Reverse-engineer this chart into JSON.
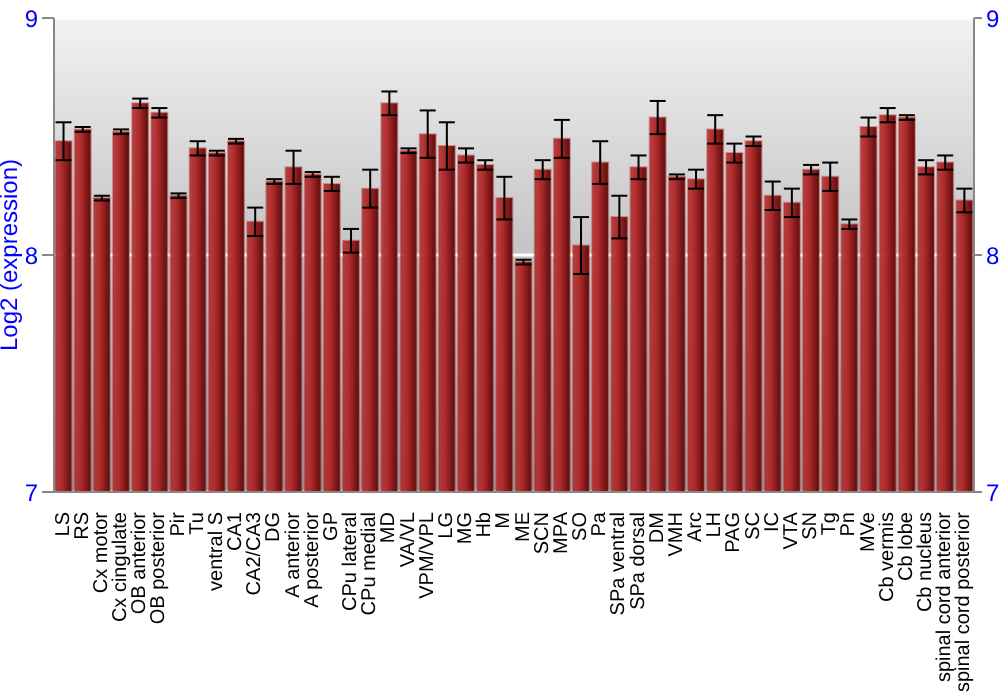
{
  "chart_data": {
    "type": "bar",
    "ylabel": "Log2 (expression)",
    "categories": [
      "LS",
      "RS",
      "Cx motor",
      "Cx cingulate",
      "OB anterior",
      "OB posterior",
      "Pir",
      "Tu",
      "ventral S",
      "CA1",
      "CA2/CA3",
      "DG",
      "A anterior",
      "A posterior",
      "GP",
      "CPu lateral",
      "CPu medial",
      "MD",
      "VA/VL",
      "VPM/VPL",
      "LG",
      "MG",
      "Hb",
      "M",
      "ME",
      "SCN",
      "MPA",
      "SO",
      "Pa",
      "SPa ventral",
      "SPa dorsal",
      "DM",
      "VMH",
      "Arc",
      "LH",
      "PAG",
      "SC",
      "IC",
      "VTA",
      "SN",
      "Tg",
      "Pn",
      "MVe",
      "Cb vermis",
      "Cb lobe",
      "Cb nucleus",
      "spinal cord anterior",
      "spinal cord posterior"
    ],
    "values": [
      8.48,
      8.53,
      8.24,
      8.52,
      8.64,
      8.6,
      8.25,
      8.45,
      8.43,
      8.48,
      8.14,
      8.31,
      8.37,
      8.34,
      8.3,
      8.06,
      8.28,
      8.64,
      8.44,
      8.51,
      8.46,
      8.42,
      8.38,
      8.24,
      7.97,
      8.36,
      8.49,
      8.04,
      8.39,
      8.16,
      8.37,
      8.58,
      8.33,
      8.32,
      8.53,
      8.43,
      8.48,
      8.25,
      8.22,
      8.36,
      8.33,
      8.13,
      8.54,
      8.59,
      8.58,
      8.37,
      8.39,
      8.23
    ],
    "errors": [
      0.08,
      0.01,
      0.01,
      0.01,
      0.02,
      0.02,
      0.01,
      0.03,
      0.01,
      0.01,
      0.06,
      0.01,
      0.07,
      0.01,
      0.03,
      0.05,
      0.08,
      0.05,
      0.01,
      0.1,
      0.1,
      0.03,
      0.02,
      0.09,
      0.01,
      0.04,
      0.08,
      0.12,
      0.09,
      0.09,
      0.05,
      0.07,
      0.01,
      0.04,
      0.06,
      0.04,
      0.02,
      0.06,
      0.06,
      0.02,
      0.06,
      0.02,
      0.04,
      0.03,
      0.01,
      0.03,
      0.03,
      0.05
    ],
    "color": "#b02a2a",
    "ylim": [
      7,
      9
    ],
    "yticks": [
      7,
      8,
      9
    ],
    "y2lim": [
      7,
      9
    ],
    "y2ticks": [
      7,
      8,
      9
    ],
    "grid": "y"
  }
}
